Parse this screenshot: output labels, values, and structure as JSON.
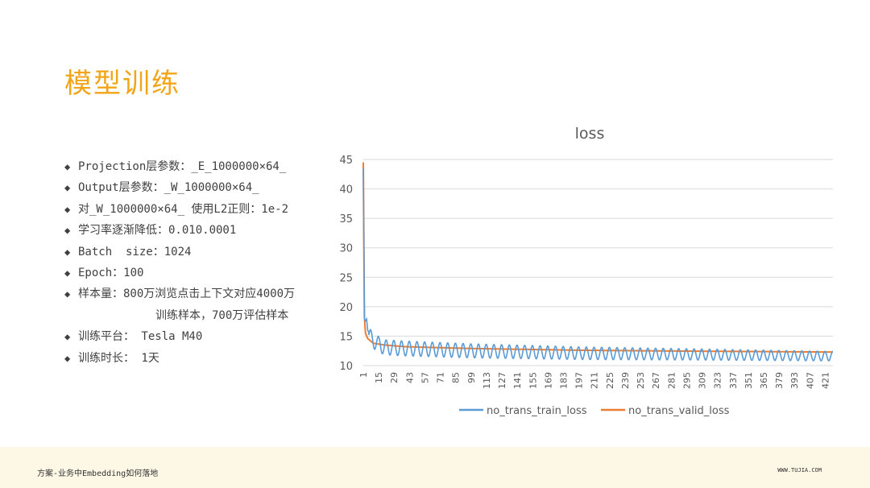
{
  "title": "模型训练",
  "bullets": [
    {
      "text": "Projection层参数：_E_1000000×64_"
    },
    {
      "text": "Output层参数：_W_1000000×64_"
    },
    {
      "text": "对_W_1000000×64_ 使用L2正则：1e-2"
    },
    {
      "text": "学习率逐渐降低：0.010.0001"
    },
    {
      "text": "Batch  size：1024"
    },
    {
      "text": "Epoch：100"
    },
    {
      "text": "样本量：800万浏览点击上下文对应4000万",
      "cont": "训练样本，700万评估样本"
    },
    {
      "text": "训练平台： Tesla M40"
    },
    {
      "text": "训练时长： 1天"
    }
  ],
  "footer": {
    "left": "方案-业务中Embedding如何落地",
    "right": "WWW.TUJIA.COM"
  },
  "colors": {
    "title": "#F2A518",
    "train": "#5B9BD5",
    "valid": "#ED7D31",
    "grid": "#D9D9D9"
  },
  "chart_data": {
    "type": "line",
    "title": "loss",
    "ylim": [
      10,
      45
    ],
    "yticks": [
      10,
      15,
      20,
      25,
      30,
      35,
      40,
      45
    ],
    "x_range": [
      1,
      428
    ],
    "xticks": [
      1,
      15,
      29,
      43,
      57,
      71,
      85,
      99,
      113,
      127,
      141,
      155,
      169,
      183,
      197,
      211,
      225,
      239,
      253,
      267,
      281,
      295,
      309,
      323,
      337,
      351,
      365,
      379,
      393,
      407,
      421
    ],
    "legend_position": "bottom",
    "grid": true,
    "series": [
      {
        "name": "no_trans_train_loss",
        "color": "#5B9BD5",
        "initial": [
          [
            1,
            43.5
          ],
          [
            2,
            18.0
          ],
          [
            3,
            17.6
          ],
          [
            4,
            17.9
          ],
          [
            5,
            16.0
          ],
          [
            6,
            15.6
          ]
        ],
        "trend": [
          [
            6,
            15.2
          ],
          [
            10,
            14.2
          ],
          [
            20,
            13.1
          ],
          [
            40,
            12.9
          ],
          [
            100,
            12.5
          ],
          [
            200,
            12.1
          ],
          [
            300,
            11.9
          ],
          [
            428,
            11.6
          ]
        ],
        "oscillation": {
          "period": 7,
          "amplitude_start": 1.3,
          "amplitude_end": 0.8
        }
      },
      {
        "name": "no_trans_valid_loss",
        "color": "#ED7D31",
        "points": [
          [
            1,
            44.5
          ],
          [
            2,
            18.2
          ],
          [
            3,
            15.5
          ],
          [
            5,
            14.6
          ],
          [
            10,
            13.8
          ],
          [
            20,
            13.5
          ],
          [
            40,
            13.2
          ],
          [
            100,
            12.9
          ],
          [
            200,
            12.6
          ],
          [
            300,
            12.45
          ],
          [
            428,
            12.3
          ]
        ]
      }
    ]
  }
}
